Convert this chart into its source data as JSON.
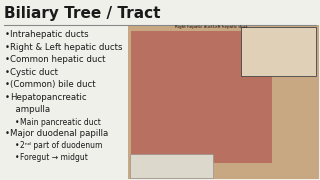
{
  "title": "Biliary Tree / Tract",
  "title_fontsize": 11,
  "title_color": "#1a1a1a",
  "background_color": "#f0f0eb",
  "bullet_color": "#1a1a1a",
  "bullet_fontsize": 6.2,
  "sub_bullet_fontsize": 5.5,
  "divider_color": "#888888",
  "items": [
    {
      "indent": 0,
      "text": "Intrahepatic ducts"
    },
    {
      "indent": 0,
      "text": "Right & Left hepatic ducts"
    },
    {
      "indent": 0,
      "text": "Common hepatic duct"
    },
    {
      "indent": 0,
      "text": "Cystic duct"
    },
    {
      "indent": 0,
      "text": "(Common) bile duct"
    },
    {
      "indent": 0,
      "text": "Hepatopancreatic"
    },
    {
      "indent": -1,
      "text": "  ampulla"
    },
    {
      "indent": 1,
      "text": "Main pancreatic duct"
    },
    {
      "indent": 0,
      "text": "Major duodenal papilla"
    },
    {
      "indent": 1,
      "text": "2ⁿᵈ part of duodenum"
    },
    {
      "indent": 1,
      "text": "Foregut → midgut"
    }
  ],
  "diagram_bg": "#c8a882",
  "liver_color": "#b87060",
  "inset_bg": "#e0d0b8",
  "legend_bg": "#ddd8cc"
}
